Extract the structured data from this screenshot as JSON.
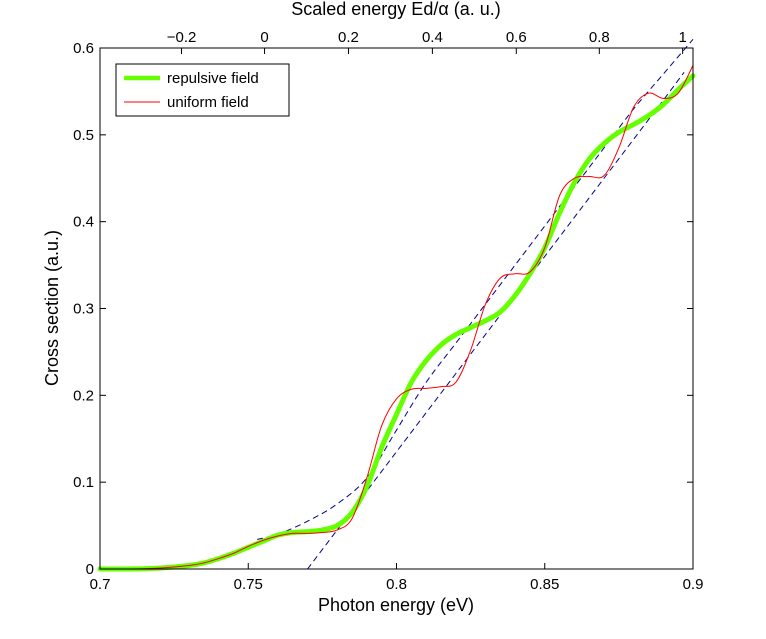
{
  "chart_data": {
    "type": "line",
    "title": "",
    "xlabel": "Photon energy (eV)",
    "ylabel": "Cross section (a.u.)",
    "top_xlabel": "Scaled energy Ed/α (a. u.)",
    "xlim": [
      0.7,
      0.9
    ],
    "ylim": [
      0,
      0.6
    ],
    "grid": false,
    "legend_position": "top-left",
    "x_ticks": [
      {
        "value": 0.7,
        "label": "0.7"
      },
      {
        "value": 0.75,
        "label": "0.75"
      },
      {
        "value": 0.8,
        "label": "0.8"
      },
      {
        "value": 0.85,
        "label": "0.85"
      },
      {
        "value": 0.9,
        "label": "0.9"
      }
    ],
    "y_ticks": [
      {
        "value": 0,
        "label": "0"
      },
      {
        "value": 0.1,
        "label": "0.1"
      },
      {
        "value": 0.2,
        "label": "0.2"
      },
      {
        "value": 0.3,
        "label": "0.3"
      },
      {
        "value": 0.4,
        "label": "0.4"
      },
      {
        "value": 0.5,
        "label": "0.5"
      },
      {
        "value": 0.6,
        "label": "0.6"
      }
    ],
    "top_ticks": [
      {
        "value": 0.7275,
        "label": "−0.2"
      },
      {
        "value": 0.7555,
        "label": "0"
      },
      {
        "value": 0.7838,
        "label": "0.2"
      },
      {
        "value": 0.8121,
        "label": "0.4"
      },
      {
        "value": 0.8404,
        "label": "0.6"
      },
      {
        "value": 0.8684,
        "label": "0.8"
      },
      {
        "value": 0.8965,
        "label": "1"
      }
    ],
    "series": [
      {
        "name": "repulsive field",
        "color": "#66ff00",
        "style": "thick solid",
        "x": [
          0.7,
          0.71,
          0.72,
          0.73,
          0.735,
          0.74,
          0.745,
          0.75,
          0.755,
          0.76,
          0.765,
          0.77,
          0.775,
          0.78,
          0.785,
          0.79,
          0.795,
          0.8,
          0.805,
          0.81,
          0.815,
          0.82,
          0.825,
          0.83,
          0.835,
          0.84,
          0.845,
          0.85,
          0.855,
          0.86,
          0.865,
          0.87,
          0.875,
          0.88,
          0.885,
          0.89,
          0.895,
          0.9
        ],
        "y": [
          0.0,
          0.0,
          0.001,
          0.004,
          0.007,
          0.012,
          0.018,
          0.025,
          0.032,
          0.039,
          0.042,
          0.043,
          0.045,
          0.05,
          0.065,
          0.095,
          0.14,
          0.178,
          0.215,
          0.24,
          0.258,
          0.27,
          0.278,
          0.286,
          0.296,
          0.315,
          0.34,
          0.37,
          0.41,
          0.445,
          0.472,
          0.49,
          0.503,
          0.512,
          0.522,
          0.535,
          0.552,
          0.568
        ]
      },
      {
        "name": "uniform field",
        "color": "#ff0000",
        "style": "thin solid",
        "x": [
          0.7,
          0.71,
          0.72,
          0.73,
          0.735,
          0.74,
          0.745,
          0.75,
          0.755,
          0.76,
          0.765,
          0.77,
          0.775,
          0.78,
          0.785,
          0.79,
          0.795,
          0.8,
          0.805,
          0.81,
          0.815,
          0.82,
          0.825,
          0.83,
          0.835,
          0.84,
          0.845,
          0.85,
          0.855,
          0.86,
          0.865,
          0.87,
          0.875,
          0.88,
          0.885,
          0.89,
          0.895,
          0.9
        ],
        "y": [
          0.0,
          0.0,
          0.001,
          0.004,
          0.007,
          0.012,
          0.018,
          0.026,
          0.033,
          0.038,
          0.041,
          0.041,
          0.042,
          0.045,
          0.058,
          0.105,
          0.165,
          0.196,
          0.207,
          0.208,
          0.21,
          0.215,
          0.252,
          0.305,
          0.335,
          0.34,
          0.342,
          0.37,
          0.43,
          0.45,
          0.452,
          0.453,
          0.485,
          0.532,
          0.548,
          0.542,
          0.548,
          0.58
        ]
      },
      {
        "name": "upper envelope",
        "color": "#00008b",
        "style": "dashed",
        "in_legend": false,
        "x": [
          0.753,
          0.76,
          0.77,
          0.78,
          0.79,
          0.8,
          0.81,
          0.82,
          0.83,
          0.84,
          0.85,
          0.86,
          0.87,
          0.88,
          0.89,
          0.9
        ],
        "y": [
          0.034,
          0.04,
          0.055,
          0.075,
          0.105,
          0.16,
          0.215,
          0.26,
          0.305,
          0.35,
          0.395,
          0.44,
          0.485,
          0.53,
          0.57,
          0.61
        ]
      },
      {
        "name": "lower envelope",
        "color": "#00008b",
        "style": "dashed",
        "in_legend": false,
        "x": [
          0.77,
          0.78,
          0.79,
          0.8,
          0.81,
          0.82,
          0.83,
          0.84,
          0.85,
          0.86,
          0.87,
          0.88,
          0.89,
          0.897
        ],
        "y": [
          0.0,
          0.045,
          0.09,
          0.135,
          0.18,
          0.225,
          0.27,
          0.315,
          0.36,
          0.405,
          0.45,
          0.495,
          0.54,
          0.572
        ]
      }
    ]
  }
}
